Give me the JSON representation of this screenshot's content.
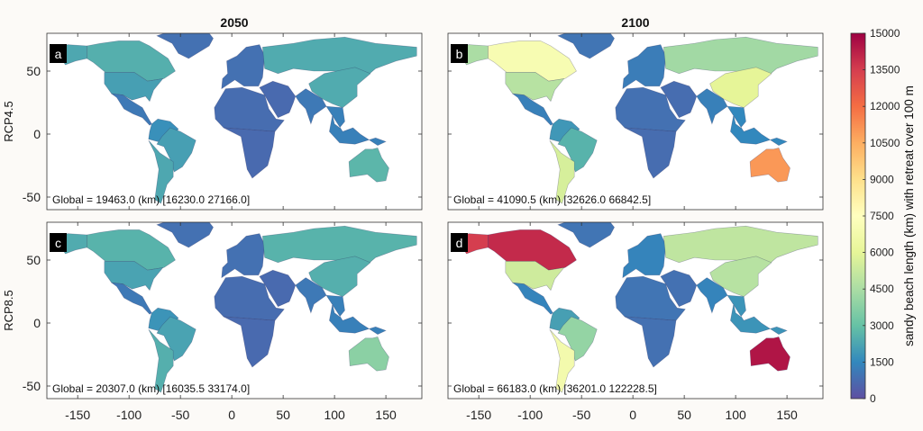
{
  "chart_data": {
    "type": "choropleth-map",
    "column_titles": [
      "2050",
      "2100"
    ],
    "row_labels": [
      "RCP4.5",
      "RCP8.5"
    ],
    "x_ticks": [
      -150,
      -100,
      -50,
      0,
      50,
      100,
      150
    ],
    "y_ticks": [
      50,
      0,
      -50
    ],
    "xlim": [
      -180,
      185
    ],
    "ylim": [
      -60,
      80
    ],
    "colorbar": {
      "label": "sandy beach length (km) with retreat over 100 m",
      "ticks": [
        0,
        1500,
        3000,
        4500,
        6000,
        7500,
        9000,
        10500,
        12000,
        13500,
        15000
      ],
      "range": [
        0,
        15000
      ],
      "colormap": [
        "#5e4fa2",
        "#3288bd",
        "#66c2a5",
        "#abdda4",
        "#e6f598",
        "#ffffbf",
        "#fee08b",
        "#fdae61",
        "#f46d43",
        "#d53e4f",
        "#9e0142"
      ]
    },
    "panels": [
      {
        "letter": "a",
        "scenario": "RCP4.5",
        "year": "2050",
        "global_label": "Global = 19463.0 (km) [16230.0 27166.0]",
        "regions": {
          "canada": 2500,
          "alaska": 2300,
          "usa": 2100,
          "central_america": 1100,
          "south_america_north": 1700,
          "brazil": 2100,
          "south_america_south": 2300,
          "greenland": 900,
          "europe": 900,
          "russia": 2400,
          "africa_north": 800,
          "africa_south": 700,
          "middle_east": 700,
          "india": 1100,
          "china": 2400,
          "southeast_asia": 1300,
          "australia": 2700
        }
      },
      {
        "letter": "b",
        "scenario": "RCP4.5",
        "year": "2100",
        "global_label": "Global = 41090.5 (km) [32626.0 66842.5]",
        "regions": {
          "canada": 7000,
          "alaska": 4500,
          "usa": 4800,
          "central_america": 1300,
          "south_america_north": 1900,
          "brazil": 2600,
          "south_america_south": 5600,
          "greenland": 1000,
          "europe": 1200,
          "russia": 4300,
          "africa_north": 900,
          "africa_south": 800,
          "middle_east": 800,
          "india": 1300,
          "china": 6000,
          "southeast_asia": 1500,
          "australia": 11000
        }
      },
      {
        "letter": "c",
        "scenario": "RCP8.5",
        "year": "2050",
        "global_label": "Global = 20307.0 (km) [16035.5 33174.0]",
        "regions": {
          "canada": 2600,
          "alaska": 2400,
          "usa": 2200,
          "central_america": 1100,
          "south_america_north": 1800,
          "brazil": 2200,
          "south_america_south": 2500,
          "greenland": 900,
          "europe": 900,
          "russia": 2600,
          "africa_north": 800,
          "africa_south": 700,
          "middle_east": 700,
          "india": 1100,
          "china": 2500,
          "southeast_asia": 1300,
          "australia": 3800
        }
      },
      {
        "letter": "d",
        "scenario": "RCP8.5",
        "year": "2100",
        "global_label": "Global = 66183.0 (km) [36201.0 122228.5]",
        "regions": {
          "canada": 14000,
          "alaska": 13500,
          "usa": 5400,
          "central_america": 1400,
          "south_america_north": 2100,
          "brazil": 4000,
          "south_america_south": 6800,
          "greenland": 1000,
          "europe": 1400,
          "russia": 5000,
          "africa_north": 1000,
          "africa_south": 900,
          "middle_east": 900,
          "india": 1400,
          "china": 4800,
          "southeast_asia": 1800,
          "australia": 14500
        }
      }
    ]
  }
}
